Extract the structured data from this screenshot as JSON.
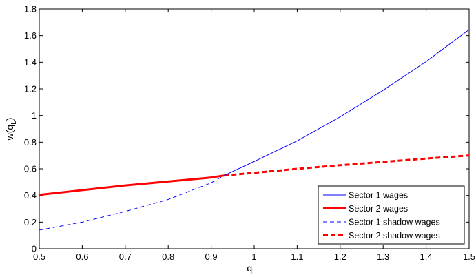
{
  "chart_data": {
    "type": "line",
    "xlabel_main": "q",
    "xlabel_sub": "L",
    "ylabel_prefix": "w(q",
    "ylabel_sub": "L",
    "ylabel_suffix": ")",
    "xlim": [
      0.5,
      1.5
    ],
    "ylim": [
      0,
      1.8
    ],
    "xticks": [
      0.5,
      0.6,
      0.7,
      0.8,
      0.9,
      1,
      1.1,
      1.2,
      1.3,
      1.4,
      1.5
    ],
    "xtick_labels": [
      "0.5",
      "0.6",
      "0.7",
      "0.8",
      "0.9",
      "1",
      "1.1",
      "1.2",
      "1.3",
      "1.4",
      "1.5"
    ],
    "yticks": [
      0,
      0.2,
      0.4,
      0.6,
      0.8,
      1,
      1.2,
      1.4,
      1.6,
      1.8
    ],
    "ytick_labels": [
      "0",
      "0.2",
      "0.4",
      "0.6",
      "0.8",
      "1",
      "1.2",
      "1.4",
      "1.6",
      "1.8"
    ],
    "grid": false,
    "legend_position": "bottom-right",
    "series": [
      {
        "name": "Sector 1 wages",
        "color": "#0000ff",
        "style": "solid",
        "weight": "thin",
        "x": [
          0.93,
          1.0,
          1.1,
          1.2,
          1.3,
          1.4,
          1.5
        ],
        "y": [
          0.55,
          0.655,
          0.81,
          0.99,
          1.19,
          1.405,
          1.645
        ]
      },
      {
        "name": "Sector 2 wages",
        "color": "#ff0000",
        "style": "solid",
        "weight": "thick",
        "x": [
          0.5,
          0.6,
          0.7,
          0.8,
          0.9,
          0.93
        ],
        "y": [
          0.405,
          0.44,
          0.475,
          0.505,
          0.535,
          0.55
        ]
      },
      {
        "name": "Sector 1 shadow wages",
        "color": "#0000ff",
        "style": "dashed",
        "weight": "thin",
        "x": [
          0.5,
          0.6,
          0.7,
          0.8,
          0.9,
          0.93
        ],
        "y": [
          0.14,
          0.2,
          0.28,
          0.37,
          0.495,
          0.55
        ]
      },
      {
        "name": "Sector 2 shadow wages",
        "color": "#ff0000",
        "style": "dashed",
        "weight": "thick",
        "x": [
          0.93,
          1.0,
          1.1,
          1.2,
          1.3,
          1.4,
          1.5
        ],
        "y": [
          0.55,
          0.57,
          0.6,
          0.627,
          0.652,
          0.677,
          0.7
        ]
      }
    ]
  }
}
